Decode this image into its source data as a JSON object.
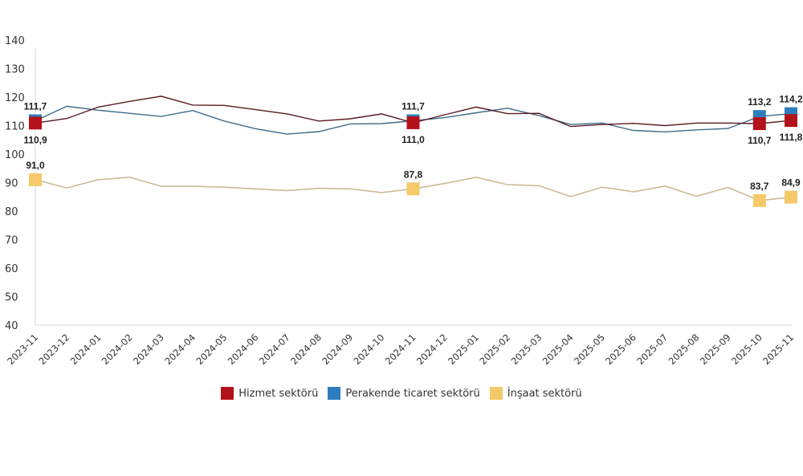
{
  "chart_data": {
    "type": "line",
    "title": "",
    "xlabel": "",
    "ylabel": "",
    "ylim": [
      40,
      140
    ],
    "yticks": [
      40,
      50,
      60,
      70,
      80,
      90,
      100,
      110,
      120,
      130,
      140
    ],
    "grid": false,
    "legend_position": "bottom",
    "categories": [
      "2023-11",
      "2023-12",
      "2024-01",
      "2024-02",
      "2024-03",
      "2024-04",
      "2024-05",
      "2024-06",
      "2024-07",
      "2024-08",
      "2024-09",
      "2024-10",
      "2024-11",
      "2024-12",
      "2025-01",
      "2025-02",
      "2025-03",
      "2025-04",
      "2025-05",
      "2025-06",
      "2025-07",
      "2025-08",
      "2025-09",
      "2025-10",
      "2025-11"
    ],
    "series": [
      {
        "name": "Hizmet sektörü",
        "color": "#b3121b",
        "line_color": "#5a1a22",
        "values": [
          110.9,
          112.5,
          116.5,
          118.5,
          120.3,
          117.2,
          117.1,
          115.6,
          114.1,
          111.6,
          112.4,
          114.1,
          111.0,
          113.8,
          116.5,
          114.2,
          114.3,
          109.7,
          110.4,
          110.8,
          110.0,
          110.9,
          110.9,
          110.7,
          111.8
        ],
        "labeled_points": [
          {
            "index": 0,
            "label": "110,9",
            "position": "below"
          },
          {
            "index": 12,
            "label": "111,0",
            "position": "below"
          },
          {
            "index": 23,
            "label": "110,7",
            "position": "below"
          },
          {
            "index": 24,
            "label": "111,8",
            "position": "below"
          }
        ]
      },
      {
        "name": "Perakende ticaret sektörü",
        "color": "#2e7ebf",
        "line_color": "#3d6c8c",
        "values": [
          111.7,
          116.8,
          115.4,
          114.3,
          113.2,
          115.3,
          111.6,
          108.9,
          107.0,
          107.9,
          110.6,
          110.7,
          111.7,
          112.8,
          114.5,
          116.1,
          113.5,
          110.4,
          110.9,
          108.3,
          107.8,
          108.5,
          109.0,
          113.2,
          114.2
        ],
        "labeled_points": [
          {
            "index": 0,
            "label": "111,7",
            "position": "above"
          },
          {
            "index": 12,
            "label": "111,7",
            "position": "above"
          },
          {
            "index": 23,
            "label": "113,2",
            "position": "above"
          },
          {
            "index": 24,
            "label": "114,2",
            "position": "above"
          }
        ]
      },
      {
        "name": "İnşaat sektörü",
        "color": "#f5c96a",
        "line_color": "#c9bc94",
        "values": [
          91.0,
          88.1,
          91.0,
          91.9,
          88.7,
          88.7,
          88.4,
          87.8,
          87.2,
          88.0,
          87.8,
          86.5,
          87.8,
          89.7,
          91.9,
          89.3,
          88.9,
          85.1,
          88.4,
          86.8,
          88.8,
          85.2,
          88.3,
          83.7,
          84.9
        ],
        "labeled_points": [
          {
            "index": 0,
            "label": "91,0",
            "position": "above"
          },
          {
            "index": 12,
            "label": "87,8",
            "position": "above"
          },
          {
            "index": 23,
            "label": "83,7",
            "position": "above"
          },
          {
            "index": 24,
            "label": "84,9",
            "position": "above"
          }
        ]
      }
    ]
  },
  "legend": {
    "items": [
      {
        "label": "Hizmet sektörü",
        "color": "#b3121b"
      },
      {
        "label": "Perakende ticaret sektörü",
        "color": "#2e7ebf"
      },
      {
        "label": "İnşaat sektörü",
        "color": "#f5c96a"
      }
    ]
  }
}
